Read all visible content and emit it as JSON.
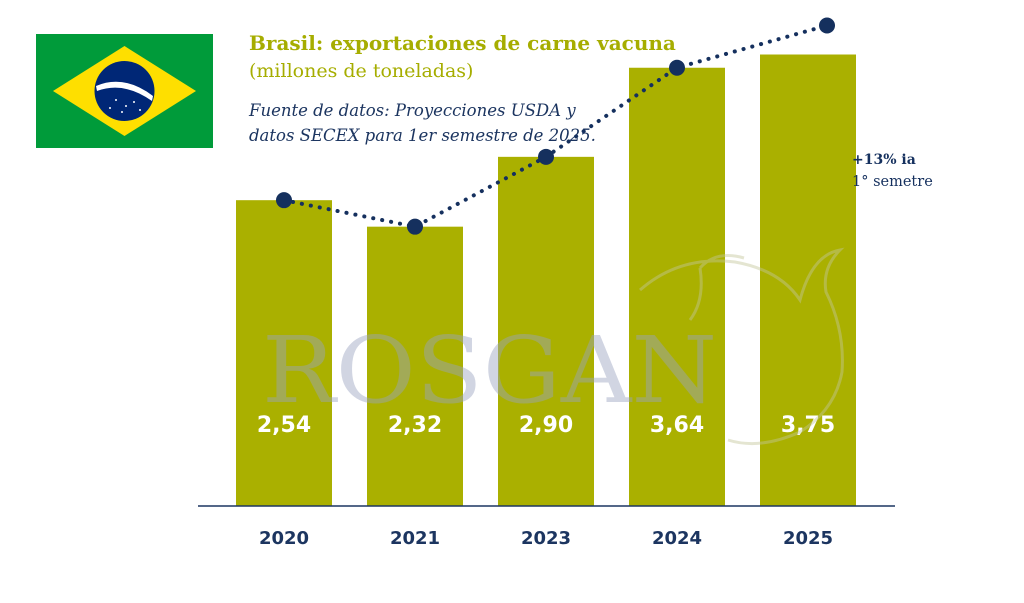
{
  "header": {
    "title": "Brasil: exportaciones de carne vacuna",
    "subtitle": "(millones de toneladas)",
    "source_line1": "Fuente de datos: Proyecciones USDA y",
    "source_line2": "datos SECEX para 1er semestre de 2025."
  },
  "watermark": "ROSGAN",
  "annotation": {
    "line1": "+13% ia",
    "line2": "1° semetre"
  },
  "colors": {
    "bar": "#aab000",
    "title": "#a6ad00",
    "line": "#15305e",
    "axis": "#1c3560",
    "flag_green": "#009b3a",
    "flag_yellow": "#fedf00",
    "flag_blue": "#002776"
  },
  "chart_data": {
    "type": "bar",
    "categories": [
      "2020",
      "2021",
      "2023",
      "2024",
      "2025"
    ],
    "values": [
      2.54,
      2.32,
      2.9,
      3.64,
      3.75
    ],
    "value_labels": [
      "2,54",
      "2,32",
      "2,90",
      "3,64",
      "3,75"
    ],
    "overlay_line": "dotted line with markers connecting bar tops",
    "ylim": [
      0,
      4.3
    ]
  }
}
